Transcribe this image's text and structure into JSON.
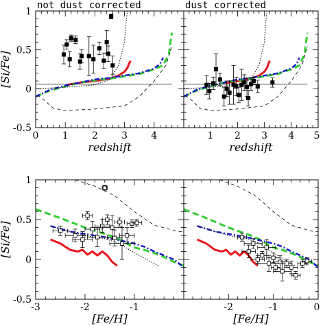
{
  "chart_data": [
    {
      "type": "scatter",
      "title": "not dust corrected",
      "xlabel": "redshift",
      "ylabel": "[Si/Fe]",
      "xlim": [
        0,
        5
      ],
      "ylim": [
        -0.5,
        1
      ],
      "xticks": [
        "0",
        "1",
        "2",
        "3",
        "4"
      ],
      "yticks": [
        "-0.5",
        "0",
        "0.5",
        "1"
      ],
      "grid": false,
      "legend": "none",
      "points": [
        {
          "x": 0.95,
          "y": 0.44,
          "yerr": 0.12
        },
        {
          "x": 1.05,
          "y": 0.57,
          "yerr": 0.06
        },
        {
          "x": 1.15,
          "y": 0.38,
          "yerr": 0.1
        },
        {
          "x": 1.2,
          "y": 0.65,
          "yerr": 0.04
        },
        {
          "x": 1.35,
          "y": 0.63,
          "yerr": 0.05
        },
        {
          "x": 1.5,
          "y": 0.35,
          "yerr": 0.1
        },
        {
          "x": 1.55,
          "y": 0.42,
          "yerr": 0.08
        },
        {
          "x": 1.8,
          "y": 0.42,
          "yerr": 0.25
        },
        {
          "x": 1.95,
          "y": 0.38,
          "yerr": 0.18
        },
        {
          "x": 2.15,
          "y": 0.52,
          "yerr": 0.08
        },
        {
          "x": 2.3,
          "y": 0.36,
          "yerr": 0.1
        },
        {
          "x": 2.4,
          "y": 0.6,
          "yerr": 0.15
        },
        {
          "x": 2.45,
          "y": 0.45,
          "yerr": 0.1
        },
        {
          "x": 2.6,
          "y": 0.3,
          "yerr": 0.12
        },
        {
          "x": 2.55,
          "y": 0.93,
          "yerr": 0.03
        }
      ],
      "series": [
        {
          "style": "solid",
          "color": "#e8141e",
          "x": [
            1.05,
            1.5,
            2.0,
            2.5,
            2.8,
            3.0,
            3.1,
            3.15,
            3.2
          ],
          "y": [
            0.05,
            0.08,
            0.1,
            0.13,
            0.17,
            0.22,
            0.27,
            0.32,
            0.36
          ]
        },
        {
          "style": "dashed",
          "color": "#33cc33",
          "x": [
            0,
            0.5,
            1.0,
            1.5,
            2.0,
            2.5,
            3.0,
            3.5,
            4.0,
            4.3,
            4.5,
            4.55,
            4.6
          ],
          "y": [
            -0.1,
            -0.02,
            0.03,
            0.08,
            0.11,
            0.13,
            0.16,
            0.19,
            0.25,
            0.3,
            0.45,
            0.6,
            0.72
          ]
        },
        {
          "style": "dash-dot",
          "color": "#1a1acc",
          "x": [
            0,
            0.5,
            1.0,
            1.5,
            2.0,
            2.5,
            3.0,
            3.5,
            4.0,
            4.2,
            4.3
          ],
          "y": [
            -0.1,
            -0.01,
            0.04,
            0.08,
            0.12,
            0.14,
            0.17,
            0.2,
            0.26,
            0.32,
            0.4
          ]
        },
        {
          "style": "dotted",
          "color": "#000000",
          "x": [
            0,
            1.0,
            2.0,
            2.5,
            2.8,
            3.0,
            3.05,
            3.1
          ],
          "y": [
            0.0,
            0.02,
            0.05,
            0.12,
            0.3,
            0.6,
            0.85,
            1.0
          ]
        },
        {
          "style": "dashed-thin",
          "color": "#000000",
          "x": [
            0.05,
            0.3,
            0.6,
            1.0,
            2.0,
            3.0,
            3.5,
            4.0,
            4.4,
            4.6
          ],
          "y": [
            -0.08,
            -0.15,
            -0.25,
            -0.28,
            -0.26,
            -0.22,
            -0.1,
            0.1,
            0.3,
            0.55
          ]
        },
        {
          "style": "solid-thin",
          "color": "#000000",
          "x": [
            0,
            4.6
          ],
          "y": [
            0.06,
            0.06
          ]
        }
      ]
    },
    {
      "type": "scatter",
      "title": "dust corrected",
      "xlabel": "redshift",
      "ylabel": "",
      "xlim": [
        0,
        5
      ],
      "ylim": [
        -0.5,
        1
      ],
      "xticks": [
        "0",
        "1",
        "2",
        "3",
        "4",
        "5"
      ],
      "yticks": [],
      "grid": false,
      "legend": "none",
      "points": [
        {
          "x": 0.85,
          "y": 0.05,
          "yerr": 0.12
        },
        {
          "x": 0.95,
          "y": -0.03,
          "yerr": 0.1
        },
        {
          "x": 1.1,
          "y": 0.07,
          "yerr": 0.08
        },
        {
          "x": 1.2,
          "y": 0.25,
          "yerr": 0.2
        },
        {
          "x": 1.35,
          "y": 0.12,
          "yerr": 0.08
        },
        {
          "x": 1.5,
          "y": -0.1,
          "yerr": 0.12
        },
        {
          "x": 1.6,
          "y": 0.0,
          "yerr": 0.1
        },
        {
          "x": 1.7,
          "y": -0.05,
          "yerr": 0.15
        },
        {
          "x": 1.85,
          "y": 0.05,
          "yerr": 0.25
        },
        {
          "x": 1.95,
          "y": 0.03,
          "yerr": 0.12
        },
        {
          "x": 2.05,
          "y": -0.08,
          "yerr": 0.1
        },
        {
          "x": 2.15,
          "y": 0.05,
          "yerr": 0.2
        },
        {
          "x": 2.25,
          "y": 0.08,
          "yerr": 0.1
        },
        {
          "x": 2.35,
          "y": 0.02,
          "yerr": 0.12
        },
        {
          "x": 2.4,
          "y": -0.12,
          "yerr": 0.1
        },
        {
          "x": 2.5,
          "y": 0.06,
          "yerr": 0.08
        },
        {
          "x": 2.6,
          "y": 0.1,
          "yerr": 0.05
        },
        {
          "x": 2.75,
          "y": 0.03,
          "yerr": 0.08
        },
        {
          "x": 3.3,
          "y": 0.08,
          "yerr": 0.06
        }
      ],
      "series": [
        {
          "style": "solid",
          "color": "#e8141e",
          "x": [
            1.5,
            2.0,
            2.5,
            2.8,
            3.0,
            3.1,
            3.15,
            3.2
          ],
          "y": [
            0.07,
            0.1,
            0.13,
            0.17,
            0.22,
            0.27,
            0.32,
            0.36
          ]
        },
        {
          "style": "dashed",
          "color": "#33cc33",
          "x": [
            0,
            0.5,
            1.0,
            1.5,
            2.0,
            2.5,
            3.0,
            3.5,
            4.0,
            4.3,
            4.5,
            4.55,
            4.6
          ],
          "y": [
            -0.1,
            -0.02,
            0.03,
            0.08,
            0.11,
            0.13,
            0.16,
            0.19,
            0.25,
            0.3,
            0.45,
            0.6,
            0.72
          ]
        },
        {
          "style": "dash-dot",
          "color": "#1a1acc",
          "x": [
            0,
            0.5,
            1.0,
            1.5,
            2.0,
            2.5,
            3.0,
            3.5,
            4.0,
            4.2,
            4.3
          ],
          "y": [
            -0.1,
            -0.01,
            0.04,
            0.08,
            0.12,
            0.14,
            0.17,
            0.2,
            0.26,
            0.32,
            0.4
          ]
        },
        {
          "style": "dotted",
          "color": "#000000",
          "x": [
            0,
            1.0,
            2.0,
            2.5,
            2.8,
            3.0,
            3.05,
            3.1
          ],
          "y": [
            0.0,
            0.02,
            0.05,
            0.12,
            0.3,
            0.6,
            0.85,
            1.0
          ]
        },
        {
          "style": "dashed-thin",
          "color": "#000000",
          "x": [
            0.05,
            0.3,
            0.6,
            1.0,
            2.0,
            3.0,
            3.5,
            4.0,
            4.4,
            4.6
          ],
          "y": [
            -0.08,
            -0.15,
            -0.25,
            -0.28,
            -0.26,
            -0.22,
            -0.1,
            0.1,
            0.3,
            0.55
          ]
        },
        {
          "style": "solid-thin",
          "color": "#000000",
          "x": [
            0,
            4.6
          ],
          "y": [
            0.06,
            0.06
          ]
        }
      ]
    },
    {
      "type": "scatter",
      "title": "",
      "xlabel": "[Fe/H]",
      "ylabel": "[Si/Fe]",
      "xlim": [
        -3,
        0
      ],
      "ylim": [
        -0.5,
        1
      ],
      "xticks": [
        "-3",
        "-2",
        "-1"
      ],
      "yticks": [
        "-0.5",
        "0",
        "0.5",
        "1"
      ],
      "grid": false,
      "legend": "none",
      "points": [
        {
          "x": -2.5,
          "y": 0.36,
          "xerr": 0.15,
          "yerr": 0.06
        },
        {
          "x": -2.2,
          "y": 0.3,
          "xerr": 0.2,
          "yerr": 0.08
        },
        {
          "x": -2.05,
          "y": 0.25,
          "xerr": 0.2,
          "yerr": 0.1
        },
        {
          "x": -1.95,
          "y": 0.55,
          "xerr": 0.1,
          "yerr": 0.05
        },
        {
          "x": -1.85,
          "y": 0.38,
          "xerr": 0.15,
          "yerr": 0.1
        },
        {
          "x": -1.75,
          "y": 0.28,
          "xerr": 0.2,
          "yerr": 0.12
        },
        {
          "x": -1.65,
          "y": 0.42,
          "xerr": 0.15,
          "yerr": 0.08
        },
        {
          "x": -1.6,
          "y": 0.9,
          "xerr": 0.05,
          "yerr": 0.03
        },
        {
          "x": -1.55,
          "y": 0.5,
          "xerr": 0.1,
          "yerr": 0.06
        },
        {
          "x": -1.45,
          "y": 0.4,
          "xerr": 0.2,
          "yerr": 0.15
        },
        {
          "x": -1.4,
          "y": 0.27,
          "xerr": 0.15,
          "yerr": 0.1
        },
        {
          "x": -1.3,
          "y": 0.47,
          "xerr": 0.1,
          "yerr": 0.05
        },
        {
          "x": -1.25,
          "y": 0.2,
          "xerr": 0.25,
          "yerr": 0.2
        },
        {
          "x": -1.15,
          "y": 0.3,
          "xerr": 0.15,
          "yerr": 0.1
        },
        {
          "x": -1.05,
          "y": 0.45,
          "xerr": 0.1,
          "yerr": 0.05
        },
        {
          "x": -0.95,
          "y": 0.46,
          "xerr": 0.1,
          "yerr": 0.04
        }
      ],
      "series": [
        {
          "style": "solid",
          "color": "#e8141e",
          "x": [
            -2.7,
            -2.5,
            -2.3,
            -2.15,
            -2.05,
            -1.95,
            -1.85,
            -1.75,
            -1.65,
            -1.55,
            -1.45,
            -1.35
          ],
          "y": [
            0.25,
            0.2,
            0.12,
            0.1,
            0.12,
            0.06,
            0.1,
            0.05,
            0.1,
            0.05,
            -0.03,
            -0.08
          ]
        },
        {
          "style": "dashed",
          "color": "#33cc33",
          "x": [
            -3.0,
            -2.5,
            -2.0,
            -1.5,
            -1.3,
            -1.1,
            -1.0,
            -0.8,
            -0.6,
            -0.4,
            -0.2,
            0.0
          ],
          "y": [
            0.63,
            0.52,
            0.4,
            0.3,
            0.25,
            0.18,
            0.15,
            0.12,
            0.08,
            0.03,
            -0.03,
            -0.08
          ]
        },
        {
          "style": "dash-dot",
          "color": "#1a1acc",
          "x": [
            -2.7,
            -2.3,
            -2.0,
            -1.6,
            -1.3,
            -1.0,
            -0.8,
            -0.6,
            -0.4,
            -0.2,
            0.0
          ],
          "y": [
            0.42,
            0.35,
            0.32,
            0.28,
            0.24,
            0.2,
            0.16,
            0.1,
            0.05,
            0.0,
            -0.1
          ]
        },
        {
          "style": "dotted",
          "color": "#000000",
          "x": [
            -2.7,
            -2.3,
            -2.0,
            -1.6,
            -1.3,
            -1.1,
            -0.9,
            -0.7,
            -0.5
          ],
          "y": [
            0.42,
            0.35,
            0.3,
            0.26,
            0.2,
            0.12,
            0.05,
            -0.02,
            -0.08
          ]
        },
        {
          "style": "dashed-thin",
          "color": "#000000",
          "x": [
            -2.2,
            -1.8,
            -1.4,
            -1.0,
            -0.6,
            -0.3,
            -0.1,
            0.0
          ],
          "y": [
            1.0,
            0.92,
            0.8,
            0.6,
            0.43,
            0.38,
            0.35,
            0.35
          ]
        }
      ]
    },
    {
      "type": "scatter",
      "title": "",
      "xlabel": "[Fe/H]",
      "ylabel": "",
      "xlim": [
        -3,
        0
      ],
      "ylim": [
        -0.5,
        1
      ],
      "xticks": [
        "-3",
        "-2",
        "-1",
        "0"
      ],
      "yticks": [],
      "grid": false,
      "legend": "none",
      "points": [
        {
          "x": -1.7,
          "y": 0.28,
          "xerr": 0.1,
          "yerr": 0.05
        },
        {
          "x": -1.55,
          "y": 0.1,
          "xerr": 0.15,
          "yerr": 0.08
        },
        {
          "x": -1.45,
          "y": 0.2,
          "xerr": 0.2,
          "yerr": 0.06
        },
        {
          "x": -1.35,
          "y": 0.0,
          "xerr": 0.15,
          "yerr": 0.05
        },
        {
          "x": -1.25,
          "y": 0.05,
          "xerr": 0.1,
          "yerr": 0.05
        },
        {
          "x": -1.15,
          "y": 0.15,
          "xerr": 0.2,
          "yerr": 0.1
        },
        {
          "x": -1.1,
          "y": -0.05,
          "xerr": 0.25,
          "yerr": 0.1
        },
        {
          "x": -1.0,
          "y": 0.02,
          "xerr": 0.15,
          "yerr": 0.06
        },
        {
          "x": -0.95,
          "y": -0.1,
          "xerr": 0.1,
          "yerr": 0.05
        },
        {
          "x": -0.85,
          "y": -0.03,
          "xerr": 0.15,
          "yerr": 0.08
        },
        {
          "x": -0.8,
          "y": -0.15,
          "xerr": 0.2,
          "yerr": 0.12
        },
        {
          "x": -0.7,
          "y": -0.05,
          "xerr": 0.1,
          "yerr": 0.05
        },
        {
          "x": -0.6,
          "y": -0.1,
          "xerr": 0.15,
          "yerr": 0.08
        },
        {
          "x": -0.5,
          "y": -0.2,
          "xerr": 0.1,
          "yerr": 0.05
        },
        {
          "x": -0.35,
          "y": -0.05,
          "xerr": 0.1,
          "yerr": 0.05
        },
        {
          "x": -0.25,
          "y": -0.02,
          "xerr": 0.1,
          "yerr": 0.04
        }
      ],
      "series": [
        {
          "style": "solid",
          "color": "#e8141e",
          "x": [
            -2.7,
            -2.5,
            -2.3,
            -2.15,
            -2.05,
            -1.95,
            -1.85,
            -1.75,
            -1.65,
            -1.55,
            -1.45,
            -1.35
          ],
          "y": [
            0.25,
            0.2,
            0.12,
            0.1,
            0.12,
            0.06,
            0.1,
            0.05,
            0.1,
            0.05,
            -0.03,
            -0.08
          ]
        },
        {
          "style": "dashed",
          "color": "#33cc33",
          "x": [
            -3.0,
            -2.5,
            -2.0,
            -1.5,
            -1.3,
            -1.1,
            -1.0,
            -0.8,
            -0.6,
            -0.4,
            -0.2,
            0.0
          ],
          "y": [
            0.63,
            0.52,
            0.4,
            0.3,
            0.25,
            0.18,
            0.15,
            0.12,
            0.08,
            0.03,
            -0.03,
            -0.08
          ]
        },
        {
          "style": "dash-dot",
          "color": "#1a1acc",
          "x": [
            -2.7,
            -2.3,
            -2.0,
            -1.6,
            -1.3,
            -1.0,
            -0.8,
            -0.6,
            -0.4,
            -0.2,
            0.0
          ],
          "y": [
            0.42,
            0.35,
            0.32,
            0.28,
            0.24,
            0.2,
            0.16,
            0.1,
            0.05,
            0.0,
            -0.1
          ]
        },
        {
          "style": "dotted",
          "color": "#000000",
          "x": [
            -2.7,
            -2.3,
            -2.0,
            -1.6,
            -1.3,
            -1.1,
            -0.9,
            -0.7,
            -0.5
          ],
          "y": [
            0.42,
            0.35,
            0.3,
            0.26,
            0.2,
            0.12,
            0.05,
            -0.02,
            -0.08
          ]
        },
        {
          "style": "dashed-thin",
          "color": "#000000",
          "x": [
            -2.2,
            -1.8,
            -1.4,
            -1.0,
            -0.6,
            -0.3,
            -0.1,
            0.0
          ],
          "y": [
            1.0,
            0.92,
            0.8,
            0.6,
            0.43,
            0.38,
            0.35,
            0.35
          ]
        }
      ]
    }
  ]
}
